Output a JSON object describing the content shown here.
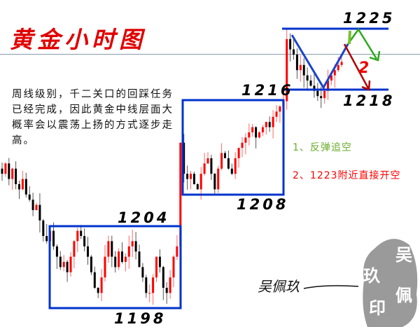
{
  "title": "黄金小时图",
  "description": "周线级别，千二关口的回踩任务已经完成，因此黄金中线层面大概率会以震荡上扬的方式逐步走高。",
  "notes": {
    "note1": "1、反弹追空",
    "note2": "2、1223附近直接开空"
  },
  "colors": {
    "title": "#e00000",
    "box": "#0033cc",
    "up": "#ff0000",
    "down": "#000000",
    "note1": "#6aab2a",
    "note2": "#ff0000",
    "path_green": "#2aa81a",
    "path_red": "#c00000"
  },
  "signature": "吴佩玖",
  "seal": "吴佩玖印",
  "chart_data": {
    "type": "candlestick",
    "title": "黄金小时图",
    "closes": [
      1211,
      1212,
      1210.5,
      1211.5,
      1210,
      1209.5,
      1210.5,
      1209,
      1208.5,
      1207.5,
      1208,
      1206.5,
      1205,
      1204.5,
      1205.5,
      1204,
      1203,
      1202,
      1202.5,
      1201.5,
      1203,
      1204.5,
      1205.5,
      1205,
      1204,
      1203,
      1201.5,
      1200,
      1199.5,
      1201,
      1203,
      1204.5,
      1203,
      1202,
      1203.5,
      1202.5,
      1203,
      1204,
      1204.5,
      1203.5,
      1202,
      1201,
      1199.5,
      1199.5,
      1201,
      1203,
      1202,
      1200,
      1199.5,
      1201,
      1203,
      1204,
      1214,
      1211,
      1210.5,
      1211,
      1210,
      1209.5,
      1211,
      1212,
      1212.5,
      1211,
      1209.5,
      1211.5,
      1213,
      1212.5,
      1211.5,
      1211,
      1212.5,
      1213.5,
      1214,
      1214.5,
      1215,
      1215.5,
      1214.5,
      1215,
      1215.5,
      1216,
      1215.5,
      1216.5,
      1217,
      1217.5,
      1218,
      1224,
      1223,
      1222.5,
      1221,
      1221.5,
      1220.5,
      1220,
      1219.5,
      1219,
      1218.5,
      1218.3,
      1219,
      1220,
      1220.5,
      1221,
      1221.5,
      1221.8
    ],
    "levels": [
      {
        "label": "1225",
        "price": 1225
      },
      {
        "label": "1218",
        "price": 1218
      },
      {
        "label": "1216",
        "price": 1216
      },
      {
        "label": "1208",
        "price": 1208
      },
      {
        "label": "1204",
        "price": 1204
      },
      {
        "label": "1198",
        "price": 1198
      }
    ],
    "ranges": [
      {
        "high": 1204,
        "low": 1198
      },
      {
        "high": 1216,
        "low": 1208
      },
      {
        "high": 1225,
        "low": 1218
      }
    ],
    "ylim": [
      1198,
      1225
    ]
  }
}
